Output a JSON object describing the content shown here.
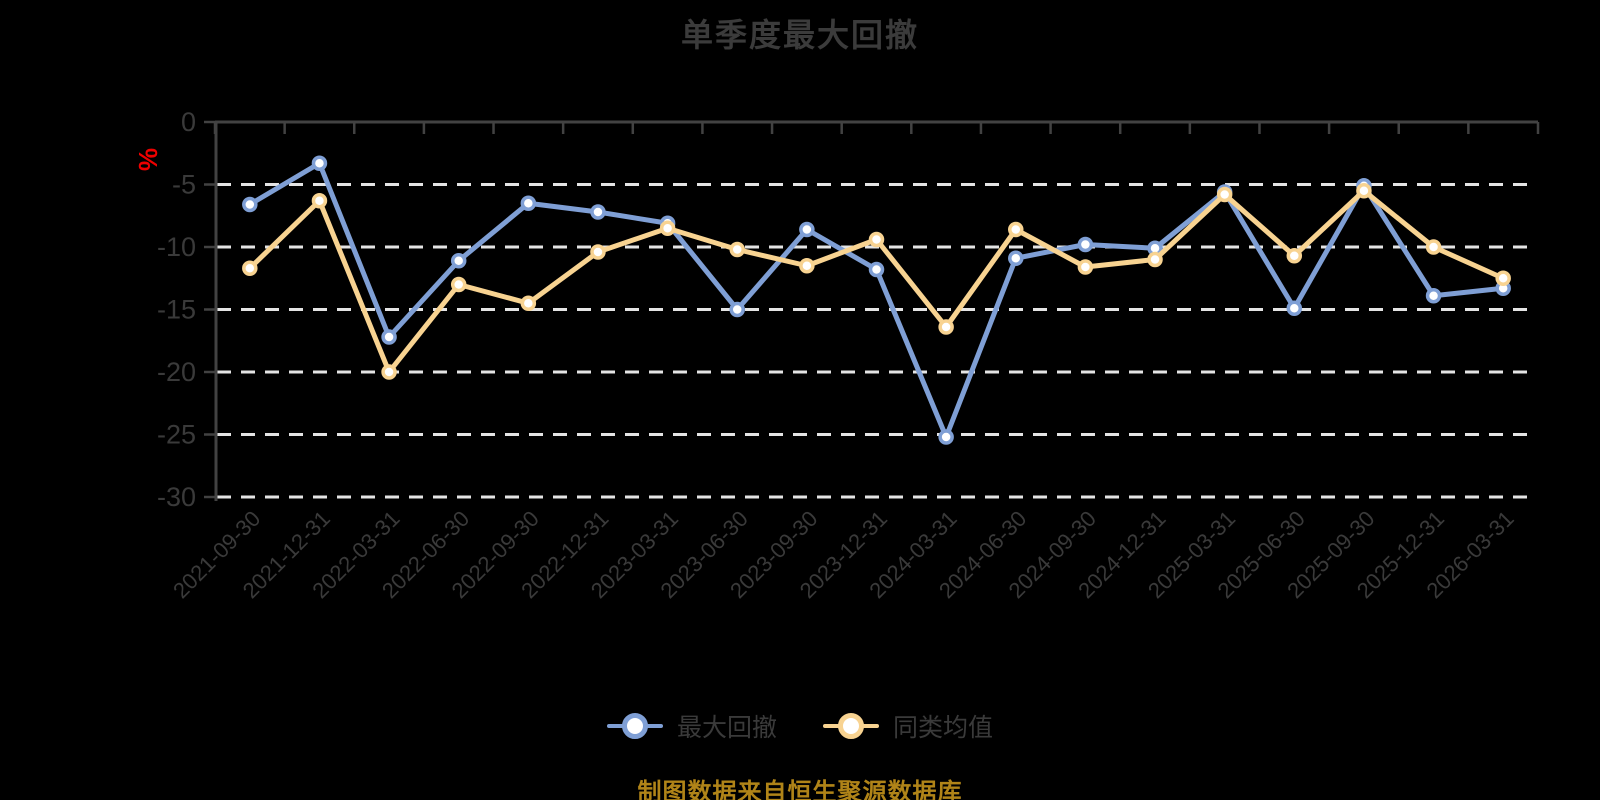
{
  "page": {
    "background": "#000000",
    "source_note": "制图数据来自恒生聚源数据库"
  },
  "colors": {
    "series_max_drawdown": "#7f9fd5",
    "series_category_average": "#f8d391",
    "marker_fill": "#ffffff",
    "y_unit_label": "#ee0000",
    "source_note": "#b08418",
    "title_text": "#3b3b3b",
    "axis_text": "#3a3a3a"
  },
  "chart_data": {
    "type": "line",
    "title": "单季度最大回撤",
    "ylabel": "%",
    "xlabel": "",
    "ylim": [
      -30,
      0
    ],
    "y_ticks": [
      "0",
      "-5",
      "-10",
      "-15",
      "-20",
      "-25",
      "-30"
    ],
    "y_tick_values": [
      0,
      -5,
      -10,
      -15,
      -20,
      -25,
      -30
    ],
    "grid": "horizontal-dashed",
    "legend_position": "bottom",
    "categories": [
      "2021-09-30",
      "2021-12-31",
      "2022-03-31",
      "2022-06-30",
      "2022-09-30",
      "2022-12-31",
      "2023-03-31",
      "2023-06-30",
      "2023-09-30",
      "2023-12-31",
      "2024-03-31",
      "2024-06-30",
      "2024-09-30",
      "2024-12-31",
      "2025-03-31",
      "2025-06-30",
      "2025-09-30",
      "2025-12-31",
      "2026-03-31"
    ],
    "series": [
      {
        "name": "最大回撤",
        "color": "#7f9fd5",
        "values": [
          -6.6,
          -3.3,
          -17.2,
          -11.1,
          -6.5,
          -7.2,
          -8.1,
          -15.0,
          -8.6,
          -11.8,
          -25.2,
          -10.9,
          -9.8,
          -10.1,
          -5.6,
          -14.9,
          -5.1,
          -13.9,
          -13.3
        ]
      },
      {
        "name": "同类均值",
        "color": "#f8d391",
        "values": [
          -11.7,
          -6.3,
          -20.0,
          -13.0,
          -14.5,
          -10.4,
          -8.5,
          -10.2,
          -11.5,
          -9.4,
          -16.4,
          -8.6,
          -11.6,
          -11.0,
          -5.8,
          -10.7,
          -5.5,
          -10.0,
          -12.5
        ]
      }
    ]
  }
}
